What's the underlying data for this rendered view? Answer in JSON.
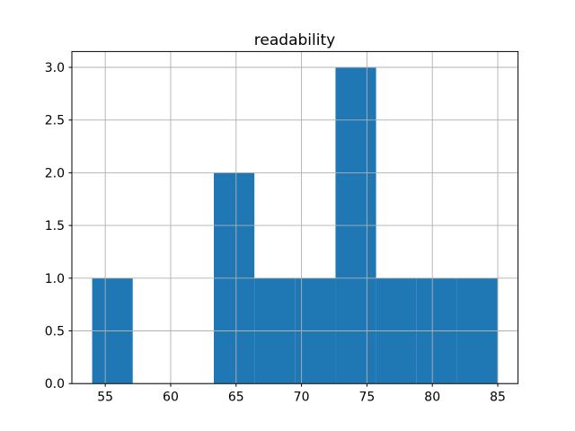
{
  "figure": {
    "background": "#ffffff"
  },
  "chart_data": {
    "type": "bar",
    "subtype": "histogram",
    "title": "readability",
    "xlabel": "",
    "ylabel": "",
    "bar_color": "#1f77b4",
    "grid": true,
    "grid_color": "#b0b0b0",
    "axes_color": "#000000",
    "bin_edges": [
      54.0,
      57.1,
      60.2,
      63.3,
      66.4,
      69.5,
      72.6,
      75.7,
      78.8,
      81.9,
      85.0
    ],
    "values": [
      1,
      0,
      0,
      2,
      1,
      1,
      3,
      1,
      1,
      1
    ],
    "xlim": [
      52.45,
      86.55
    ],
    "ylim": [
      0,
      3.15
    ],
    "xticks": [
      55,
      60,
      65,
      70,
      75,
      80,
      85
    ],
    "yticks": [
      0.0,
      0.5,
      1.0,
      1.5,
      2.0,
      2.5,
      3.0
    ],
    "xtick_labels": [
      "55",
      "60",
      "65",
      "70",
      "75",
      "80",
      "85"
    ],
    "ytick_labels": [
      "0.0",
      "0.5",
      "1.0",
      "1.5",
      "2.0",
      "2.5",
      "3.0"
    ],
    "legend": "none"
  }
}
